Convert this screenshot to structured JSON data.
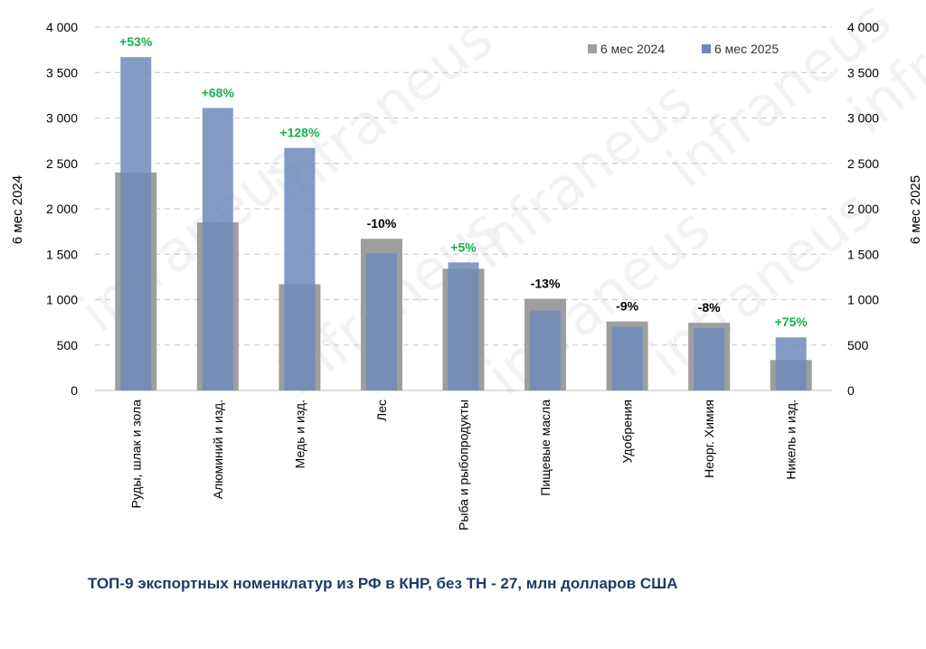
{
  "caption": "ТОП-9 экспортных номенклатур из РФ в КНР, без ТН - 27, млн долларов США",
  "watermark": "infraneus",
  "colors": {
    "s2024": "#9e9e9e",
    "s2025": "#6e89b8",
    "positive": "#19b04b",
    "negative": "#000000",
    "grid": "#d0d0d0"
  },
  "chart_data": {
    "type": "bar",
    "categories": [
      "Руды, шлак и зола",
      "Алюминий и изд.",
      "Медь и изд.",
      "Лес",
      "Рыба и рыбопродукты",
      "Пищевые масла",
      "Удобрения",
      "Неорг. Химия",
      "Никель и изд."
    ],
    "series": [
      {
        "name": "6 мес 2024",
        "values": [
          2400,
          1850,
          1170,
          1670,
          1340,
          1010,
          760,
          745,
          335
        ]
      },
      {
        "name": "6 мес 2025",
        "values": [
          3670,
          3110,
          2670,
          1510,
          1410,
          880,
          700,
          685,
          585
        ]
      }
    ],
    "change_labels": [
      "+53%",
      "+68%",
      "+128%",
      "-10%",
      "+5%",
      "-13%",
      "-9%",
      "-8%",
      "+75%"
    ],
    "ylabel_left": "6 мес 2024",
    "ylabel_right": "6 мес 2025",
    "ylim": [
      0,
      4000
    ],
    "yticks": [
      0,
      500,
      1000,
      1500,
      2000,
      2500,
      3000,
      3500,
      4000
    ],
    "ytick_labels": [
      "0",
      "500",
      "1 000",
      "1 500",
      "2 000",
      "2 500",
      "3 000",
      "3 500",
      "4 000"
    ],
    "grid": true,
    "legend": "top-right"
  }
}
